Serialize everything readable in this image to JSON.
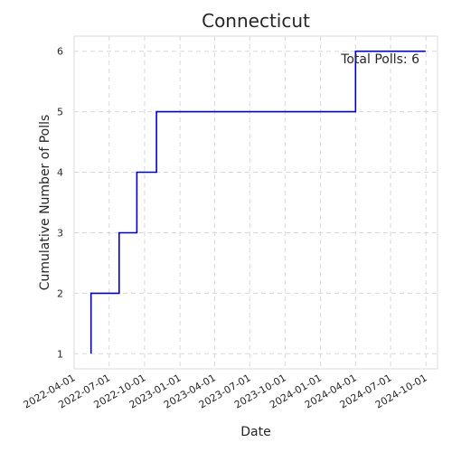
{
  "chart_data": {
    "type": "line",
    "title": "Connecticut",
    "xlabel": "Date",
    "ylabel": "Cumulative Number of Polls",
    "x_ticks": [
      "2022-04-01",
      "2022-07-01",
      "2022-10-01",
      "2023-01-01",
      "2023-04-01",
      "2023-07-01",
      "2023-10-01",
      "2024-01-01",
      "2024-04-01",
      "2024-07-01",
      "2024-10-01"
    ],
    "y_ticks": [
      1,
      2,
      3,
      4,
      5,
      6
    ],
    "xlim": [
      "2022-04-01",
      "2024-10-31"
    ],
    "ylim": [
      0.75,
      6.25
    ],
    "grid": true,
    "series": [
      {
        "color": "#0000cc",
        "step": "post",
        "x": [
          "2022-05-15",
          "2022-05-15",
          "2022-07-27",
          "2022-07-27",
          "2022-09-11",
          "2022-09-11",
          "2022-11-01",
          "2022-11-01",
          "2024-04-01",
          "2024-04-01",
          "2024-09-30"
        ],
        "values": [
          1,
          2,
          2,
          3,
          3,
          4,
          4,
          5,
          5,
          6,
          6
        ]
      }
    ],
    "annotation": "Total Polls: 6"
  }
}
